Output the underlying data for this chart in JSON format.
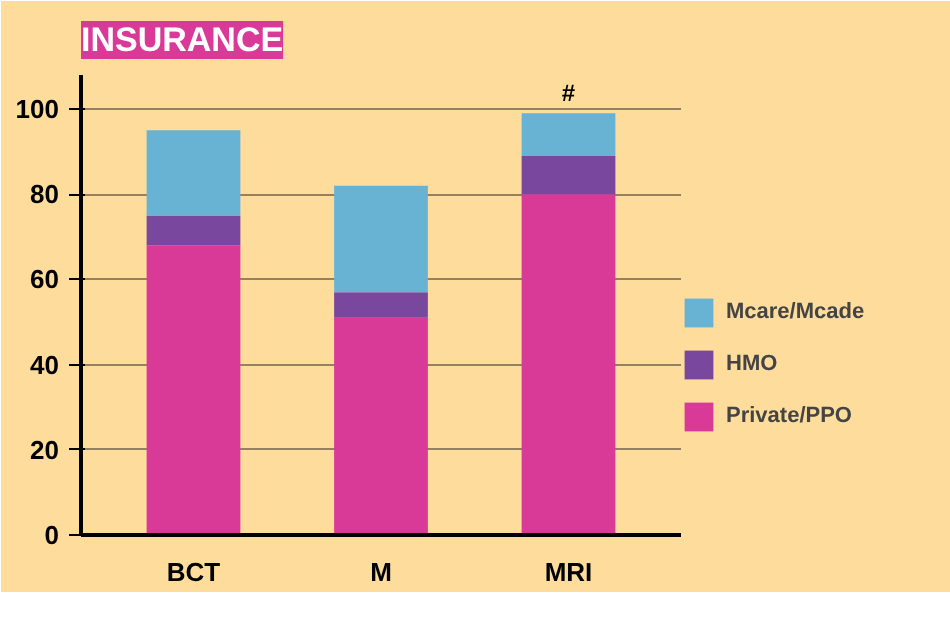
{
  "chart_data": {
    "type": "bar",
    "title": "INSURANCE",
    "stacked": true,
    "categories": [
      "BCT",
      "M",
      "MRI"
    ],
    "series": [
      {
        "name": "Private/PPO",
        "color": "#d93a98",
        "values": [
          68,
          51,
          80
        ]
      },
      {
        "name": "HMO",
        "color": "#7a479e",
        "values": [
          7,
          6,
          9
        ]
      },
      {
        "name": "Mcare/Mcade",
        "color": "#68b2d4",
        "values": [
          20,
          25,
          10
        ]
      }
    ],
    "ylim": [
      0,
      108
    ],
    "yticks": [
      0,
      20,
      40,
      60,
      80,
      100
    ],
    "grid": "y",
    "legend": "right",
    "annotations": [
      {
        "text": "#",
        "x": "MRI",
        "y": 99
      }
    ]
  }
}
